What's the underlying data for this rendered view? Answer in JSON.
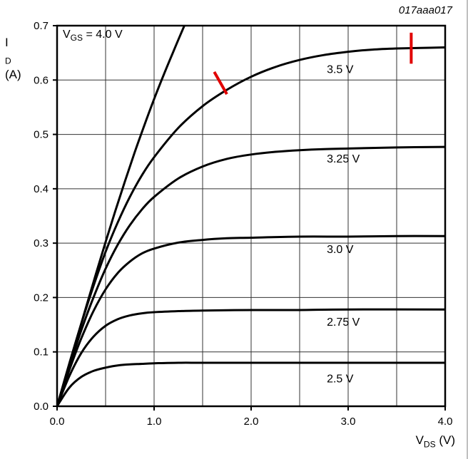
{
  "figure_id": "017aaa017",
  "axis_labels": {
    "y": {
      "symbol": "I",
      "sub": "D",
      "unit": "(A)"
    },
    "x": {
      "symbol": "V",
      "sub": "DS",
      "unit": "(V)"
    }
  },
  "gate_label": {
    "symbol": "V",
    "sub": "GS",
    "rest": " = 4.0 V"
  },
  "chart_data": {
    "type": "line",
    "title": "",
    "xlabel": "VDS (V)",
    "ylabel": "ID (A)",
    "xlim": [
      0,
      4
    ],
    "ylim": [
      0,
      0.7
    ],
    "x_tick_values": [
      0,
      1,
      2,
      3,
      4
    ],
    "x_tick_labels": [
      "0.0",
      "1.0",
      "2.0",
      "3.0",
      "4.0"
    ],
    "y_tick_values": [
      0,
      0.1,
      0.2,
      0.3,
      0.4,
      0.5,
      0.6,
      0.7
    ],
    "y_tick_labels": [
      "0.0",
      "0.1",
      "0.2",
      "0.3",
      "0.4",
      "0.5",
      "0.6",
      "0.7"
    ],
    "grid": {
      "on": true,
      "x_step": 0.5,
      "y_step": 0.1
    },
    "line_color": "#000000",
    "annotation_color": "#e10000",
    "series": [
      {
        "name": "VGS = 4.0 V",
        "label": "",
        "points": [
          [
            0,
            0
          ],
          [
            0.1,
            0.06
          ],
          [
            0.2,
            0.122
          ],
          [
            0.3,
            0.183
          ],
          [
            0.4,
            0.243
          ],
          [
            0.5,
            0.302
          ],
          [
            0.6,
            0.359
          ],
          [
            0.7,
            0.414
          ],
          [
            0.8,
            0.467
          ],
          [
            0.9,
            0.517
          ],
          [
            1.0,
            0.565
          ],
          [
            1.1,
            0.61
          ],
          [
            1.2,
            0.653
          ],
          [
            1.3,
            0.695
          ],
          [
            1.35,
            0.715
          ]
        ]
      },
      {
        "name": "VGS = 3.5 V",
        "label": "3.5 V",
        "label_at": [
          2.78,
          0.613
        ],
        "points": [
          [
            0,
            0
          ],
          [
            0.125,
            0.078
          ],
          [
            0.25,
            0.152
          ],
          [
            0.375,
            0.221
          ],
          [
            0.5,
            0.284
          ],
          [
            0.625,
            0.338
          ],
          [
            0.75,
            0.385
          ],
          [
            0.875,
            0.425
          ],
          [
            1.0,
            0.458
          ],
          [
            1.25,
            0.512
          ],
          [
            1.5,
            0.552
          ],
          [
            1.75,
            0.582
          ],
          [
            2.0,
            0.606
          ],
          [
            2.25,
            0.624
          ],
          [
            2.5,
            0.637
          ],
          [
            2.75,
            0.646
          ],
          [
            3.0,
            0.652
          ],
          [
            3.25,
            0.656
          ],
          [
            3.5,
            0.658
          ],
          [
            3.75,
            0.659
          ],
          [
            4.0,
            0.66
          ]
        ]
      },
      {
        "name": "VGS = 3.25 V",
        "label": "3.25 V",
        "label_at": [
          2.78,
          0.448
        ],
        "points": [
          [
            0,
            0
          ],
          [
            0.125,
            0.072
          ],
          [
            0.25,
            0.14
          ],
          [
            0.375,
            0.2
          ],
          [
            0.5,
            0.253
          ],
          [
            0.625,
            0.297
          ],
          [
            0.75,
            0.333
          ],
          [
            0.875,
            0.362
          ],
          [
            1.0,
            0.385
          ],
          [
            1.25,
            0.419
          ],
          [
            1.5,
            0.441
          ],
          [
            1.75,
            0.455
          ],
          [
            2.0,
            0.463
          ],
          [
            2.25,
            0.468
          ],
          [
            2.5,
            0.471
          ],
          [
            2.75,
            0.473
          ],
          [
            3.0,
            0.474
          ],
          [
            3.5,
            0.476
          ],
          [
            4.0,
            0.477
          ]
        ]
      },
      {
        "name": "VGS = 3.0 V",
        "label": "3.0 V",
        "label_at": [
          2.78,
          0.282
        ],
        "points": [
          [
            0,
            0
          ],
          [
            0.125,
            0.066
          ],
          [
            0.25,
            0.125
          ],
          [
            0.375,
            0.175
          ],
          [
            0.5,
            0.215
          ],
          [
            0.625,
            0.245
          ],
          [
            0.75,
            0.266
          ],
          [
            0.875,
            0.281
          ],
          [
            1.0,
            0.29
          ],
          [
            1.25,
            0.301
          ],
          [
            1.5,
            0.306
          ],
          [
            1.75,
            0.309
          ],
          [
            2.0,
            0.31
          ],
          [
            2.5,
            0.312
          ],
          [
            3.0,
            0.312
          ],
          [
            3.5,
            0.313
          ],
          [
            4.0,
            0.313
          ]
        ]
      },
      {
        "name": "VGS = 2.75 V",
        "label": "2.75 V",
        "label_at": [
          2.78,
          0.148
        ],
        "points": [
          [
            0,
            0
          ],
          [
            0.125,
            0.055
          ],
          [
            0.25,
            0.098
          ],
          [
            0.375,
            0.128
          ],
          [
            0.5,
            0.148
          ],
          [
            0.625,
            0.16
          ],
          [
            0.75,
            0.167
          ],
          [
            0.875,
            0.171
          ],
          [
            1.0,
            0.173
          ],
          [
            1.25,
            0.175
          ],
          [
            1.5,
            0.176
          ],
          [
            2.0,
            0.177
          ],
          [
            2.5,
            0.177
          ],
          [
            3.0,
            0.178
          ],
          [
            4.0,
            0.178
          ]
        ]
      },
      {
        "name": "VGS = 2.5 V",
        "label": "2.5 V",
        "label_at": [
          2.78,
          0.044
        ],
        "points": [
          [
            0,
            0
          ],
          [
            0.125,
            0.034
          ],
          [
            0.25,
            0.054
          ],
          [
            0.375,
            0.065
          ],
          [
            0.5,
            0.071
          ],
          [
            0.625,
            0.075
          ],
          [
            0.75,
            0.077
          ],
          [
            0.875,
            0.078
          ],
          [
            1.0,
            0.079
          ],
          [
            1.25,
            0.08
          ],
          [
            1.5,
            0.08
          ],
          [
            2.0,
            0.08
          ],
          [
            3.0,
            0.08
          ],
          [
            4.0,
            0.08
          ]
        ]
      }
    ],
    "annotations": [
      {
        "type": "red-tick-mark",
        "x1": 1.62,
        "y1": 0.615,
        "x2": 1.75,
        "y2": 0.574
      },
      {
        "type": "red-tick-mark",
        "x1": 3.65,
        "y1": 0.687,
        "x2": 3.65,
        "y2": 0.63
      }
    ]
  }
}
